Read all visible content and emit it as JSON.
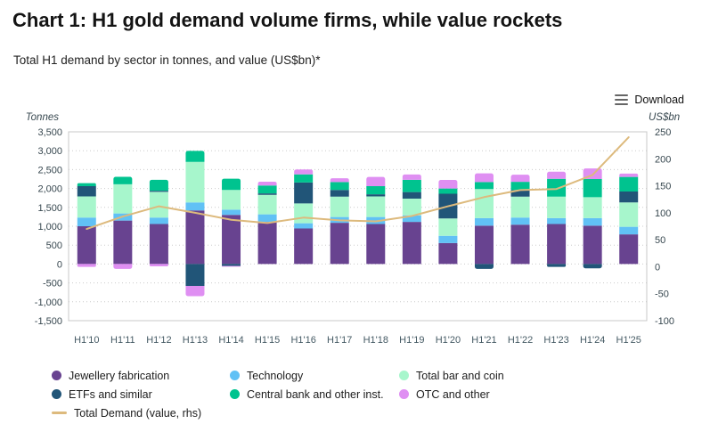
{
  "header": {
    "title": "Chart 1: H1 gold demand volume firms, while value rockets",
    "subtitle": "Total H1 demand by sector in tonnes, and value (US$bn)*"
  },
  "toolbar": {
    "download_label": "Download"
  },
  "axes": {
    "left_unit": "Tonnes",
    "right_unit": "US$bn",
    "left_ticks": [
      "3,500",
      "3,000",
      "2,500",
      "2,000",
      "1,500",
      "1,000",
      "500",
      "0",
      "-500",
      "-1,000",
      "-1,500"
    ],
    "right_ticks": [
      "250",
      "200",
      "150",
      "100",
      "50",
      "0",
      "-50",
      "-100"
    ]
  },
  "chart_data": {
    "type": "bar",
    "subtype": "stacked-column-with-line-overlay",
    "title": "Chart 1: H1 gold demand volume firms, while value rockets",
    "xlabel": "",
    "ylabel_left": "Tonnes",
    "ylabel_right": "US$bn",
    "grid": true,
    "legend_position": "bottom-left",
    "categories": [
      "H1'10",
      "H1'11",
      "H1'12",
      "H1'13",
      "H1'14",
      "H1'15",
      "H1'16",
      "H1'17",
      "H1'18",
      "H1'19",
      "H1'20",
      "H1'21",
      "H1'22",
      "H1'23",
      "H1'24",
      "H1'25"
    ],
    "bar_axis": {
      "min": -1500,
      "max": 3500,
      "tick_step": 500,
      "unit": "tonnes"
    },
    "line_axis": {
      "min": -100,
      "max": 250,
      "tick_step": 50,
      "unit": "US$bn"
    },
    "series": [
      {
        "name": "Jewellery fabrication",
        "color": "#684390",
        "values": [
          1000,
          1150,
          1060,
          1420,
          1300,
          1115,
          940,
          1090,
          1060,
          1115,
          555,
          1015,
          1040,
          1060,
          1015,
          785
        ]
      },
      {
        "name": "Technology",
        "color": "#61c1f5",
        "values": [
          230,
          190,
          170,
          210,
          140,
          200,
          140,
          155,
          185,
          175,
          190,
          200,
          190,
          155,
          200,
          200
        ]
      },
      {
        "name": "Total bar and coin",
        "color": "#a7f6cc",
        "values": [
          560,
          770,
          680,
          1075,
          520,
          515,
          525,
          540,
          545,
          440,
          460,
          770,
          555,
          570,
          555,
          645
        ]
      },
      {
        "name": "ETFs and similar",
        "color": "#215578",
        "values": [
          270,
          0,
          30,
          -580,
          -50,
          40,
          555,
          175,
          55,
          175,
          655,
          -130,
          175,
          -75,
          -115,
          290
        ]
      },
      {
        "name": "Central bank and other inst.",
        "color": "#00c38f",
        "values": [
          80,
          200,
          290,
          290,
          300,
          210,
          215,
          210,
          215,
          325,
          140,
          185,
          215,
          470,
          480,
          385
        ]
      },
      {
        "name": "OTC and other",
        "color": "#df8ff2",
        "values": [
          -75,
          -130,
          -60,
          -270,
          -20,
          100,
          130,
          100,
          245,
          140,
          225,
          230,
          190,
          190,
          280,
          90
        ]
      }
    ],
    "line_series": {
      "name": "Total Demand (value, rhs)",
      "color": "#ddba7d",
      "axis": "right",
      "values": [
        70,
        93,
        112,
        100,
        87,
        81,
        91,
        86,
        84,
        94,
        112,
        129,
        142,
        144,
        170,
        240
      ]
    },
    "style": {
      "grid_color": "#cccccc",
      "border_color": "#c8c8c8",
      "tick_label_color": "#37474f",
      "category_label_color": "#455a64"
    }
  },
  "legend": {
    "columns": [
      [
        "Jewellery fabrication",
        "ETFs and similar",
        "Total Demand (value, rhs)"
      ],
      [
        "Technology",
        "Central bank and other inst."
      ],
      [
        "Total bar and coin",
        "OTC and other"
      ]
    ]
  }
}
